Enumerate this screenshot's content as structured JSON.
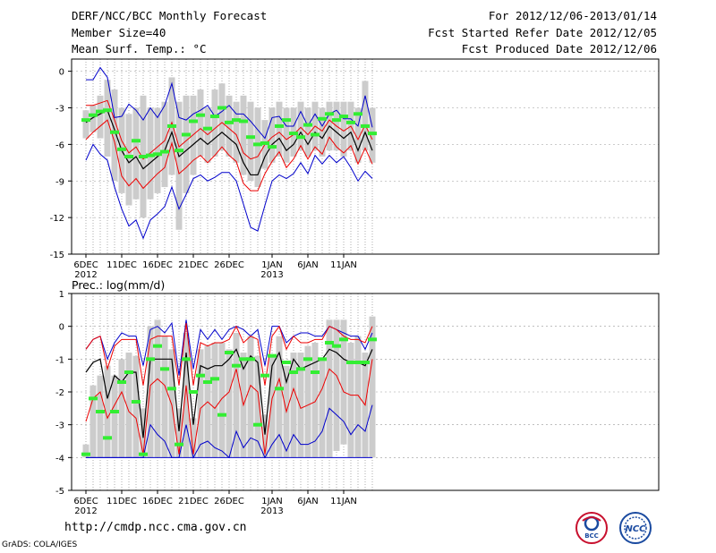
{
  "header": {
    "title": "DERF/NCC/BCC Monthly Forecast",
    "member_size": "Member Size=40",
    "variable": "Mean Surf. Temp.: °C",
    "period": "For 2012/12/06-2013/01/14",
    "started": "Fcst Started Refer Date 2012/12/05",
    "produced": "Fcst Produced Date 2012/12/06"
  },
  "footer": {
    "url": "http://cmdp.ncc.cma.gov.cn",
    "grads": "GrADS: COLA/IGES",
    "logo1_text": "BCC",
    "logo2_text": "NCC"
  },
  "colors": {
    "box": "#cccccc",
    "median": "#33ee33",
    "mean": "#000000",
    "sd": "#ee0000",
    "extreme": "#0000cc",
    "grid": "#999999"
  },
  "chart_data": [
    {
      "type": "line",
      "title": "Mean Surf. Temp.: °C",
      "ylim": [
        -15,
        1
      ],
      "yticks": [
        0,
        -3,
        -6,
        -9,
        -12,
        -15
      ],
      "xticks": [
        {
          "day": 0,
          "label": "6DEC",
          "sub": "2012"
        },
        {
          "day": 5,
          "label": "11DEC"
        },
        {
          "day": 10,
          "label": "16DEC"
        },
        {
          "day": 15,
          "label": "21DEC"
        },
        {
          "day": 20,
          "label": "26DEC"
        },
        {
          "day": 26,
          "label": "1JAN",
          "sub": "2013"
        },
        {
          "day": 31,
          "label": "6JAN"
        },
        {
          "day": 36,
          "label": "11JAN"
        }
      ],
      "mean": [
        -4.2,
        -3.8,
        -3.5,
        -3.2,
        -4.8,
        -6.5,
        -7.5,
        -7.0,
        -8.0,
        -7.5,
        -7.0,
        -6.5,
        -5.0,
        -7.0,
        -6.5,
        -6.0,
        -5.5,
        -6.0,
        -5.5,
        -5.0,
        -5.5,
        -6.0,
        -7.5,
        -8.5,
        -8.5,
        -7.0,
        -6.0,
        -5.5,
        -6.5,
        -6.0,
        -5.0,
        -6.0,
        -5.0,
        -5.5,
        -4.5,
        -5.0,
        -5.5,
        -5.0,
        -6.5,
        -5.0,
        -6.5
      ],
      "sd_upper": [
        -2.8,
        -2.8,
        -2.6,
        -2.4,
        -4.0,
        -5.7,
        -6.7,
        -6.2,
        -7.2,
        -6.7,
        -6.2,
        -5.7,
        -4.2,
        -6.2,
        -5.7,
        -5.2,
        -4.7,
        -5.2,
        -4.7,
        -4.2,
        -4.7,
        -5.2,
        -6.7,
        -7.2,
        -7.0,
        -6.0,
        -5.4,
        -5.0,
        -5.6,
        -5.2,
        -4.6,
        -5.2,
        -4.5,
        -4.9,
        -4.0,
        -4.5,
        -4.9,
        -4.5,
        -5.6,
        -4.4,
        -5.6
      ],
      "sd_lower": [
        -5.6,
        -5.0,
        -4.5,
        -4.0,
        -5.8,
        -8.6,
        -9.4,
        -8.8,
        -9.6,
        -9.0,
        -8.4,
        -7.9,
        -5.9,
        -8.4,
        -7.9,
        -7.3,
        -6.9,
        -7.5,
        -6.9,
        -6.2,
        -6.9,
        -7.4,
        -9.2,
        -9.8,
        -9.8,
        -8.4,
        -7.4,
        -6.6,
        -7.9,
        -7.2,
        -6.1,
        -7.2,
        -6.2,
        -6.8,
        -5.4,
        -6.2,
        -6.7,
        -6.1,
        -7.6,
        -6.3,
        -7.6
      ],
      "max": [
        -0.7,
        -0.7,
        0.3,
        -0.5,
        -3.8,
        -3.7,
        -2.7,
        -3.2,
        -4.0,
        -3.0,
        -3.8,
        -2.8,
        -1.0,
        -3.8,
        -4.0,
        -3.5,
        -3.2,
        -2.8,
        -3.7,
        -3.3,
        -2.8,
        -3.5,
        -3.5,
        -4.1,
        -4.8,
        -5.5,
        -3.8,
        -3.7,
        -4.5,
        -4.5,
        -3.3,
        -4.5,
        -3.5,
        -4.5,
        -3.5,
        -3.2,
        -3.9,
        -3.9,
        -4.5,
        -2.0,
        -4.6
      ],
      "min": [
        -7.3,
        -6.0,
        -6.8,
        -7.3,
        -9.5,
        -11.3,
        -12.7,
        -12.2,
        -13.7,
        -12.2,
        -11.7,
        -11.1,
        -9.5,
        -11.3,
        -10.1,
        -8.8,
        -8.5,
        -9.0,
        -8.7,
        -8.3,
        -8.3,
        -9.0,
        -10.9,
        -12.8,
        -13.1,
        -11.0,
        -9.0,
        -8.5,
        -8.8,
        -8.4,
        -7.5,
        -8.4,
        -6.9,
        -7.6,
        -6.9,
        -7.5,
        -7.0,
        -7.9,
        -9.0,
        -8.2,
        -8.8
      ],
      "box_upper": [
        -3.2,
        -2.8,
        -2.0,
        -0.7,
        -1.5,
        -3.0,
        -3.5,
        -3.0,
        -2.0,
        -3.0,
        -3.0,
        -2.5,
        -0.5,
        -2.5,
        -2.0,
        -2.0,
        -1.5,
        -3.0,
        -1.5,
        -1.0,
        -2.0,
        -2.5,
        -2.0,
        -2.5,
        -3.0,
        -4.0,
        -3.0,
        -2.5,
        -3.0,
        -3.0,
        -2.5,
        -3.0,
        -2.5,
        -3.0,
        -2.5,
        -2.5,
        -2.5,
        -2.5,
        -3.0,
        -0.8,
        -3.0
      ],
      "box_lower": [
        -5.5,
        -5.0,
        -5.5,
        -7.0,
        -9.0,
        -10.0,
        -11.0,
        -10.5,
        -12.0,
        -10.5,
        -10.0,
        -9.5,
        -8.5,
        -13.0,
        -10.0,
        -8.5,
        -7.0,
        -7.5,
        -7.0,
        -6.5,
        -7.0,
        -7.5,
        -8.5,
        -9.0,
        -9.5,
        -8.0,
        -7.5,
        -7.0,
        -7.5,
        -7.0,
        -6.5,
        -7.0,
        -6.5,
        -7.0,
        -6.5,
        -6.5,
        -7.0,
        -6.5,
        -7.5,
        -6.5,
        -7.5
      ],
      "median": [
        -4.0,
        -3.6,
        -3.3,
        -3.2,
        -5.0,
        -6.4,
        -7.0,
        -5.7,
        -7.0,
        -6.9,
        -6.8,
        -6.6,
        -4.5,
        -6.5,
        -5.2,
        -4.1,
        -3.6,
        -4.7,
        -3.7,
        -3.0,
        -4.2,
        -4.0,
        -4.1,
        -5.4,
        -6.0,
        -5.9,
        -6.2,
        -4.5,
        -4.0,
        -5.1,
        -5.4,
        -4.4,
        -5.2,
        -3.9,
        -3.5,
        -4.0,
        -3.7,
        -4.2,
        -3.5,
        -4.5,
        -5.1
      ]
    },
    {
      "type": "line",
      "title": "Prec.: log(mm/d)",
      "ylim": [
        -5,
        1
      ],
      "yticks": [
        1,
        0,
        -1,
        -2,
        -3,
        -4,
        -5
      ],
      "xticks": [
        {
          "day": 0,
          "label": "6DEC",
          "sub": "2012"
        },
        {
          "day": 5,
          "label": "11DEC"
        },
        {
          "day": 10,
          "label": "16DEC"
        },
        {
          "day": 15,
          "label": "21DEC"
        },
        {
          "day": 20,
          "label": "26DEC"
        },
        {
          "day": 26,
          "label": "1JAN",
          "sub": "2013"
        },
        {
          "day": 31,
          "label": "6JAN"
        },
        {
          "day": 36,
          "label": "11JAN"
        }
      ],
      "mean": [
        -1.4,
        -1.1,
        -1.0,
        -2.2,
        -1.5,
        -1.7,
        -1.4,
        -1.4,
        -3.4,
        -1.0,
        -1.0,
        -1.0,
        -1.0,
        -3.2,
        -0.8,
        -3.0,
        -1.2,
        -1.3,
        -1.2,
        -1.2,
        -1.0,
        -0.7,
        -1.3,
        -0.9,
        -1.1,
        -3.3,
        -1.2,
        -0.8,
        -1.7,
        -1.0,
        -1.3,
        -1.2,
        -1.1,
        -1.0,
        -0.7,
        -0.8,
        -1.0,
        -1.1,
        -1.1,
        -1.2,
        -0.7
      ],
      "sd_upper": [
        -0.7,
        -0.4,
        -0.3,
        -1.3,
        -0.6,
        -0.4,
        -0.4,
        -0.4,
        -1.8,
        -0.4,
        -0.3,
        -0.3,
        -0.3,
        -1.8,
        0.1,
        -1.8,
        -0.5,
        -0.6,
        -0.5,
        -0.5,
        -0.4,
        0.0,
        -0.5,
        -0.3,
        -0.4,
        -1.8,
        -0.3,
        0.0,
        -0.7,
        -0.3,
        -0.5,
        -0.5,
        -0.4,
        -0.4,
        0.0,
        -0.1,
        -0.3,
        -0.4,
        -0.4,
        -0.5,
        0.0
      ],
      "sd_lower": [
        -2.9,
        -2.2,
        -2.0,
        -2.8,
        -2.4,
        -2.0,
        -2.6,
        -2.8,
        -3.9,
        -1.8,
        -1.6,
        -1.8,
        -2.4,
        -3.9,
        -1.8,
        -3.9,
        -2.5,
        -2.3,
        -2.5,
        -2.2,
        -2.0,
        -1.3,
        -2.4,
        -1.8,
        -2.0,
        -3.9,
        -2.2,
        -1.6,
        -2.6,
        -1.9,
        -2.5,
        -2.4,
        -2.3,
        -1.9,
        -1.3,
        -1.5,
        -2.0,
        -2.1,
        -2.1,
        -2.4,
        -1.0
      ],
      "min": [
        -4.0,
        -4.0,
        -4.0,
        -4.0,
        -4.0,
        -4.0,
        -4.0,
        -4.0,
        -4.0,
        -3.0,
        -3.3,
        -3.5,
        -4.0,
        -4.0,
        -3.0,
        -4.0,
        -3.6,
        -3.5,
        -3.7,
        -3.8,
        -4.0,
        -3.2,
        -3.7,
        -3.4,
        -3.5,
        -4.0,
        -3.6,
        -3.3,
        -3.8,
        -3.3,
        -3.6,
        -3.6,
        -3.5,
        -3.2,
        -2.5,
        -2.7,
        -2.9,
        -3.3,
        -3.0,
        -3.2,
        -2.4
      ],
      "max": [
        -0.7,
        -0.4,
        -0.3,
        -1.0,
        -0.5,
        -0.2,
        -0.3,
        -0.3,
        -1.2,
        -0.1,
        0.0,
        -0.2,
        0.1,
        -1.5,
        0.2,
        -1.3,
        -0.1,
        -0.4,
        -0.1,
        -0.4,
        -0.1,
        0.0,
        -0.1,
        -0.3,
        -0.1,
        -1.2,
        0.0,
        0.0,
        -0.5,
        -0.3,
        -0.2,
        -0.2,
        -0.3,
        -0.3,
        0.0,
        -0.1,
        -0.2,
        -0.3,
        -0.3,
        -0.7,
        -0.2
      ],
      "box_upper": [
        -3.6,
        -1.8,
        -1.5,
        -1.2,
        -1.5,
        -1.0,
        -0.8,
        -0.9,
        -2.5,
        0.0,
        0.2,
        -0.3,
        -0.7,
        -2.5,
        -0.2,
        -2.8,
        -0.7,
        -0.6,
        -0.5,
        -0.5,
        -0.7,
        -0.2,
        -0.8,
        -0.3,
        -0.9,
        -2.7,
        -0.9,
        -0.3,
        -1.2,
        -0.8,
        -0.8,
        -0.6,
        -0.5,
        -1.0,
        0.2,
        0.2,
        0.2,
        -0.5,
        -0.3,
        -0.8,
        0.3
      ],
      "box_lower": [
        -4.0,
        -4.0,
        -4.0,
        -4.0,
        -4.0,
        -4.0,
        -4.0,
        -4.0,
        -4.0,
        -4.0,
        -4.0,
        -4.0,
        -4.0,
        -4.0,
        -4.0,
        -4.0,
        -4.0,
        -4.0,
        -4.0,
        -4.0,
        -4.0,
        -4.0,
        -4.0,
        -4.0,
        -4.0,
        -4.0,
        -4.0,
        -4.0,
        -4.0,
        -4.0,
        -4.0,
        -4.0,
        -4.0,
        -4.0,
        -4.0,
        -3.8,
        -3.6,
        -4.0,
        -4.0,
        -4.0,
        -4.0
      ],
      "median": [
        -3.9,
        -2.2,
        -2.6,
        -3.4,
        -2.6,
        -1.7,
        -1.4,
        -2.3,
        -3.9,
        -1.0,
        -0.6,
        -1.3,
        -1.9,
        -3.6,
        -1.0,
        -2.0,
        -1.5,
        -1.7,
        -1.6,
        -2.7,
        -0.8,
        -1.2,
        -1.0,
        -1.0,
        -3.0,
        -1.5,
        -0.9,
        -1.9,
        -1.1,
        -1.4,
        -1.3,
        -1.0,
        -1.4,
        -1.0,
        -0.5,
        -0.6,
        -0.4,
        -1.1,
        -1.1,
        -1.1,
        -0.4
      ]
    }
  ]
}
